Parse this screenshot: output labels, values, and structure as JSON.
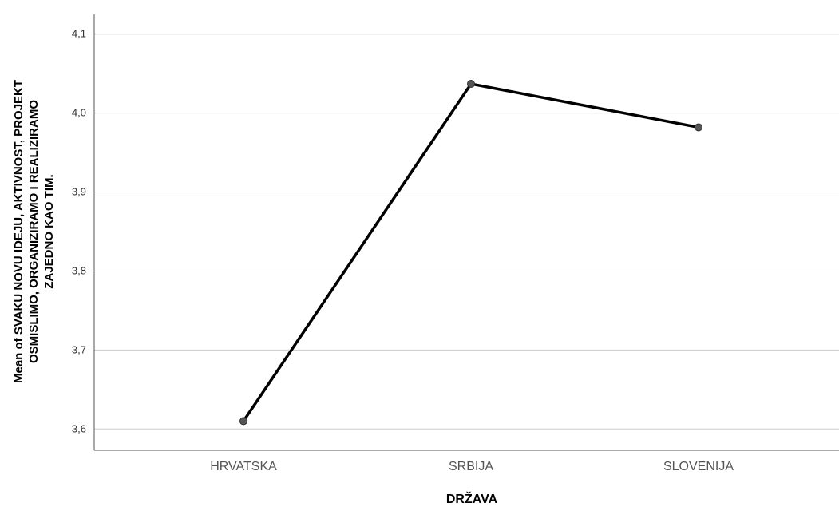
{
  "chart_data": {
    "type": "line",
    "title": "",
    "xlabel": "DRŽAVA",
    "ylabel_lines": [
      "Mean of SVAKU NOVU IDEJU, AKTIVNOST, PROJEKT",
      "OSMISLIMO, ORGANIZIRAMO I REALIZIRAMO",
      "ZAJEDNO KAO TIM."
    ],
    "categories": [
      "HRVATSKA",
      "SRBIJA",
      "SLOVENIJA"
    ],
    "series": [
      {
        "values": [
          3.61,
          4.037,
          3.982
        ]
      }
    ],
    "ylim": [
      3.573,
      4.125
    ],
    "yticks": [
      3.6,
      3.7,
      3.8,
      3.9,
      4.0,
      4.1
    ],
    "ytick_labels": [
      "3,6",
      "3,7",
      "3,8",
      "3,9",
      "4,0",
      "4,1"
    ],
    "grid": true,
    "line_color": "#000000",
    "marker_color": "#555555",
    "grid_color": "#cccccc"
  }
}
